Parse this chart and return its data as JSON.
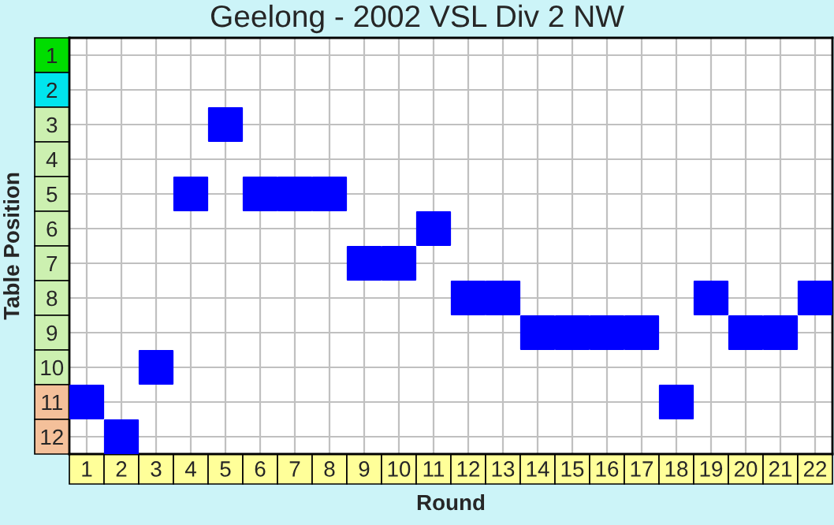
{
  "chart_data": {
    "type": "scatter",
    "title": "Geelong - 2002 VSL Div 2 NW",
    "xlabel": "Round",
    "ylabel": "Table Position",
    "categories": [
      "1",
      "2",
      "3",
      "4",
      "5",
      "6",
      "7",
      "8",
      "9",
      "10",
      "11",
      "12",
      "13",
      "14",
      "15",
      "16",
      "17",
      "18",
      "19",
      "20",
      "21",
      "22"
    ],
    "series": [
      {
        "color": "#0000ff",
        "values": [
          11,
          12,
          10,
          5,
          3,
          5,
          5,
          5,
          7,
          7,
          6,
          8,
          8,
          9,
          9,
          9,
          9,
          11,
          8,
          9,
          9,
          8
        ]
      }
    ],
    "ylim": [
      12.5,
      0.5
    ],
    "yticks": [
      1,
      2,
      3,
      4,
      5,
      6,
      7,
      8,
      9,
      10,
      11,
      12
    ],
    "marker": "square",
    "grid": true
  }
}
